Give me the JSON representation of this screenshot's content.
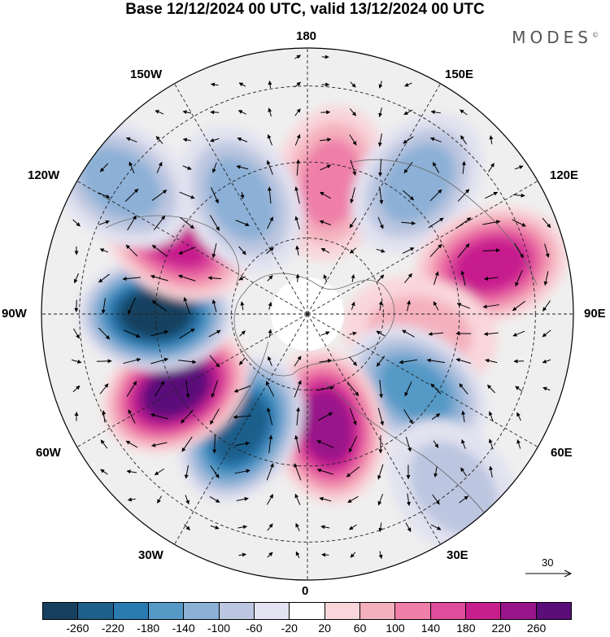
{
  "title": "Base 12/12/2024 00 UTC, valid 13/12/2024 00 UTC",
  "brand": "MODES",
  "brand_mark": "©",
  "longitude_labels": [
    "180",
    "150E",
    "120E",
    "90E",
    "60E",
    "30E",
    "0",
    "30W",
    "60W",
    "90W",
    "120W",
    "150W"
  ],
  "reference_vector": "30",
  "colorbar": {
    "colors": [
      "#17405e",
      "#1f5f8b",
      "#2b7bb3",
      "#5599c6",
      "#8cb0d6",
      "#bcc6e0",
      "#e2e2f0",
      "#ffffff",
      "#f9d6da",
      "#f4b1bd",
      "#ef7fa8",
      "#e04c9c",
      "#c71f8e",
      "#98158a",
      "#5a0e7a"
    ],
    "ticks": [
      "-260",
      "-220",
      "-180",
      "-140",
      "-100",
      "-60",
      "-20",
      "20",
      "60",
      "100",
      "140",
      "180",
      "220",
      "260"
    ]
  },
  "anomaly_centers": [
    {
      "lon": 170,
      "lat": 55,
      "value": 120
    },
    {
      "lon": 140,
      "lat": 45,
      "value": -120
    },
    {
      "lon": 105,
      "lat": 40,
      "value": 180
    },
    {
      "lon": 80,
      "lat": 60,
      "value": 90
    },
    {
      "lon": 55,
      "lat": 55,
      "value": -150
    },
    {
      "lon": 40,
      "lat": 30,
      "value": -80
    },
    {
      "lon": 10,
      "lat": 60,
      "value": 230
    },
    {
      "lon": -30,
      "lat": 55,
      "value": -240
    },
    {
      "lon": -60,
      "lat": 50,
      "value": 270
    },
    {
      "lon": -90,
      "lat": 50,
      "value": -270
    },
    {
      "lon": -120,
      "lat": 50,
      "value": 200
    },
    {
      "lon": -150,
      "lat": 55,
      "value": -130
    },
    {
      "lon": -125,
      "lat": 30,
      "value": -120
    }
  ]
}
